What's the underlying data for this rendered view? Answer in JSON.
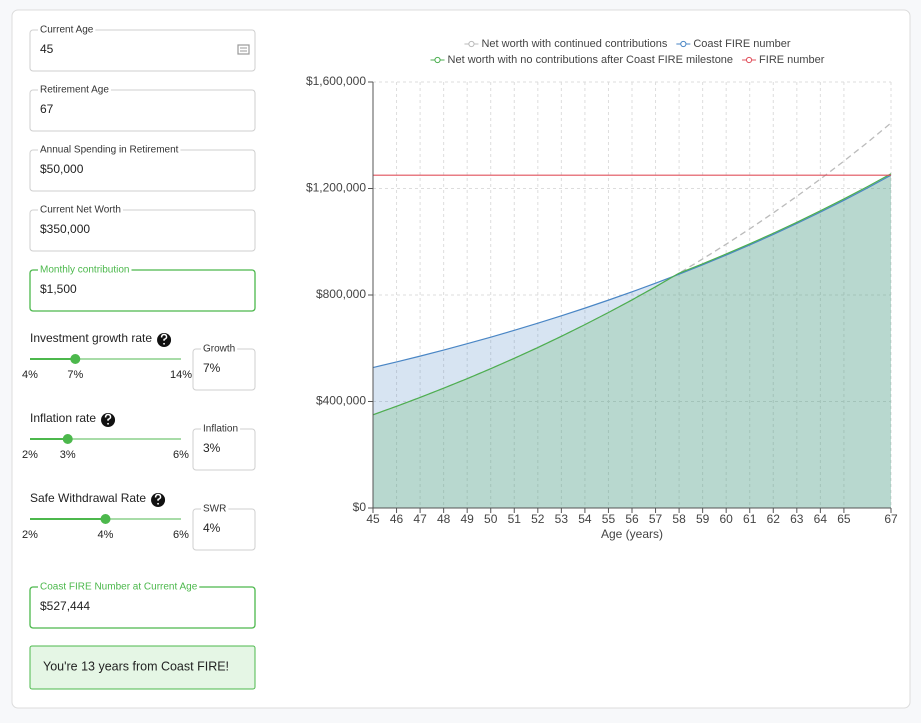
{
  "form": {
    "fields": [
      {
        "label": "Current Age",
        "value": "45",
        "focused": false
      },
      {
        "label": "Retirement Age",
        "value": "67",
        "focused": false
      },
      {
        "label": "Annual Spending in Retirement",
        "value": "$50,000",
        "focused": false
      },
      {
        "label": "Current Net Worth",
        "value": "$350,000",
        "focused": false
      },
      {
        "label": "Monthly contribution",
        "value": "$1,500",
        "focused": true
      }
    ],
    "sliders": [
      {
        "label": "Investment growth rate",
        "min": {
          "value": 4,
          "label": "4%"
        },
        "value": {
          "value": 7,
          "label": "7%"
        },
        "max": {
          "value": 14,
          "label": "14%"
        },
        "input_label": "Growth",
        "input_value": "7%"
      },
      {
        "label": "Inflation rate",
        "min": {
          "value": 2,
          "label": "2%"
        },
        "value": {
          "value": 3,
          "label": "3%"
        },
        "max": {
          "value": 6,
          "label": "6%"
        },
        "input_label": "Inflation",
        "input_value": "3%"
      },
      {
        "label": "Safe Withdrawal Rate",
        "min": {
          "value": 2,
          "label": "2%"
        },
        "value": {
          "value": 4,
          "label": "4%"
        },
        "max": {
          "value": 6,
          "label": "6%"
        },
        "input_label": "SWR",
        "input_value": "4%"
      }
    ],
    "result": {
      "label": "Coast FIRE Number at Current Age",
      "value": "$527,444",
      "highlight": true
    },
    "message": "You're 13 years from Coast FIRE!"
  },
  "chart_data": {
    "type": "line",
    "x_label": "Age (years)",
    "x": [
      45,
      46,
      47,
      48,
      49,
      50,
      51,
      52,
      53,
      54,
      55,
      56,
      57,
      58,
      59,
      60,
      61,
      62,
      63,
      64,
      65,
      66,
      67
    ],
    "xlim": [
      45,
      67
    ],
    "xticks": [
      45,
      46,
      47,
      48,
      49,
      50,
      51,
      52,
      53,
      54,
      55,
      56,
      57,
      58,
      59,
      60,
      61,
      62,
      63,
      64,
      65,
      67
    ],
    "ylim": [
      0,
      1600000
    ],
    "yticks": [
      {
        "value": 0,
        "label": "$0"
      },
      {
        "value": 400000,
        "label": "$400,000"
      },
      {
        "value": 800000,
        "label": "$800,000"
      },
      {
        "value": 1200000,
        "label": "$1,200,000"
      },
      {
        "value": 1600000,
        "label": "$1,600,000"
      }
    ],
    "grid": true,
    "series": [
      {
        "name": "Net worth with continued contributions",
        "color": "#bbbbbb",
        "dash": true,
        "area": false,
        "values": [
          350000,
          382000,
          415280,
          449891,
          485887,
          523322,
          562255,
          602745,
          644855,
          688649,
          734195,
          781563,
          830826,
          882059,
          935341,
          990755,
          1048385,
          1108320,
          1170653,
          1235479,
          1302898,
          1373014,
          1445935
        ]
      },
      {
        "name": "Coast FIRE number",
        "color": "#4a86c5",
        "dash": false,
        "area": true,
        "values": [
          527444,
          548540,
          570483,
          593303,
          617035,
          641717,
          667385,
          694081,
          721844,
          750718,
          780747,
          811976,
          844455,
          878234,
          913363,
          949897,
          987893,
          1027409,
          1068505,
          1111245,
          1155695,
          1201923,
          1250000
        ]
      },
      {
        "name": "Net worth with no contributions after Coast FIRE milestone",
        "color": "#4caf50",
        "dash": false,
        "area": true,
        "values": [
          350000,
          382000,
          415280,
          449891,
          485887,
          523322,
          562255,
          602745,
          644855,
          688649,
          734195,
          781563,
          830826,
          882059,
          917341,
          954035,
          992196,
          1031884,
          1073159,
          1116085,
          1160729,
          1207158,
          1255444
        ]
      },
      {
        "name": "FIRE number",
        "color": "#e0505c",
        "dash": false,
        "area": false,
        "values": [
          1250000,
          1250000,
          1250000,
          1250000,
          1250000,
          1250000,
          1250000,
          1250000,
          1250000,
          1250000,
          1250000,
          1250000,
          1250000,
          1250000,
          1250000,
          1250000,
          1250000,
          1250000,
          1250000,
          1250000,
          1250000,
          1250000,
          1250000
        ]
      }
    ]
  }
}
